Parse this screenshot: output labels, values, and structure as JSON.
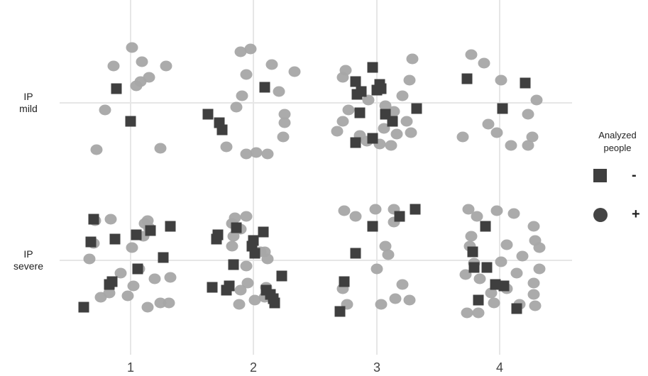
{
  "chart_data": {
    "type": "scatter",
    "title": "",
    "xlabel": "",
    "ylabel": "",
    "x_categories": [
      "1",
      "2",
      "3",
      "4"
    ],
    "y_categories": [
      "IP mild",
      "IP severe"
    ],
    "y_category_lines": [
      [
        "IP",
        "mild"
      ],
      [
        "IP",
        "severe"
      ]
    ],
    "grid": true,
    "legend": {
      "title": "Analyzed people",
      "title_lines": [
        "Analyzed",
        "people"
      ],
      "placement": "right",
      "items": [
        {
          "label": "-",
          "marker": "square"
        },
        {
          "label": "+",
          "marker": "circle"
        }
      ]
    },
    "colors": {
      "minus": "#3f3f3f",
      "plus": "#a6a6a6",
      "grid": "#e6e6e6"
    },
    "series": [
      {
        "name": "-",
        "marker": "square",
        "points": [
          {
            "x": -0.1,
            "y": 0.1
          },
          {
            "x": 0.0,
            "y": -0.13
          },
          {
            "x": -0.32,
            "y": -0.08
          },
          {
            "x": -0.24,
            "y": -0.14
          },
          {
            "x": -0.22,
            "y": -0.19
          },
          {
            "x": 0.08,
            "y": 0.11
          },
          {
            "x": -0.03,
            "y": 0.25
          },
          {
            "x": -0.15,
            "y": 0.15
          },
          {
            "x": -0.14,
            "y": 0.06
          },
          {
            "x": -0.11,
            "y": 0.08
          },
          {
            "x": 0.0,
            "y": 0.09
          },
          {
            "x": 0.02,
            "y": 0.13
          },
          {
            "x": 0.03,
            "y": 0.1
          },
          {
            "x": -0.12,
            "y": -0.07
          },
          {
            "x": 0.06,
            "y": -0.08
          },
          {
            "x": 0.11,
            "y": -0.13
          },
          {
            "x": 0.28,
            "y": -0.04
          },
          {
            "x": -0.03,
            "y": -0.25
          },
          {
            "x": -0.15,
            "y": -0.28
          },
          {
            "x": -0.23,
            "y": 0.17
          },
          {
            "x": 0.18,
            "y": 0.14
          },
          {
            "x": 0.02,
            "y": -0.04
          },
          {
            "x": -0.26,
            "y": 0.29
          },
          {
            "x": -0.11,
            "y": 0.15
          },
          {
            "x": 0.28,
            "y": 0.24
          },
          {
            "x": 0.04,
            "y": 0.18
          },
          {
            "x": 0.05,
            "y": -0.06
          },
          {
            "x": -0.13,
            "y": -0.15
          },
          {
            "x": -0.15,
            "y": -0.17
          },
          {
            "x": -0.33,
            "y": -0.33
          },
          {
            "x": 0.23,
            "y": 0.02
          },
          {
            "x": 0.14,
            "y": 0.21
          },
          {
            "x": -0.28,
            "y": 0.13
          },
          {
            "x": -0.25,
            "y": 0.18
          },
          {
            "x": -0.26,
            "y": 0.15
          },
          {
            "x": -0.12,
            "y": 0.23
          },
          {
            "x": 0.07,
            "y": 0.2
          },
          {
            "x": 0.0,
            "y": 0.14
          },
          {
            "x": -0.01,
            "y": 0.1
          },
          {
            "x": 0.01,
            "y": 0.05
          },
          {
            "x": -0.14,
            "y": -0.03
          },
          {
            "x": 0.2,
            "y": -0.11
          },
          {
            "x": -0.17,
            "y": -0.18
          },
          {
            "x": -0.19,
            "y": -0.21
          },
          {
            "x": -0.29,
            "y": -0.19
          },
          {
            "x": 0.12,
            "y": -0.24
          },
          {
            "x": 0.14,
            "y": -0.27
          },
          {
            "x": 0.15,
            "y": -0.3
          },
          {
            "x": 0.09,
            "y": -0.21
          },
          {
            "x": -0.03,
            "y": 0.24
          },
          {
            "x": -0.15,
            "y": 0.05
          },
          {
            "x": 0.16,
            "y": 0.31
          },
          {
            "x": 0.27,
            "y": 0.36
          },
          {
            "x": -0.23,
            "y": -0.15
          },
          {
            "x": -0.26,
            "y": -0.36
          },
          {
            "x": 0.12,
            "y": -0.34
          },
          {
            "x": -0.1,
            "y": 0.24
          },
          {
            "x": -0.19,
            "y": 0.06
          },
          {
            "x": -0.18,
            "y": -0.05
          },
          {
            "x": -0.09,
            "y": -0.05
          },
          {
            "x": -0.15,
            "y": -0.28
          },
          {
            "x": -0.03,
            "y": -0.17
          },
          {
            "x": 0.03,
            "y": -0.18
          },
          {
            "x": 0.19,
            "y": 0.15
          }
        ]
      },
      {
        "name": "+",
        "marker": "circle",
        "points": [
          {
            "x": -0.12,
            "y": 0.26
          },
          {
            "x": 0.01,
            "y": 0.39
          },
          {
            "x": 0.08,
            "y": 0.29
          },
          {
            "x": 0.13,
            "y": 0.18
          },
          {
            "x": 0.07,
            "y": 0.15
          },
          {
            "x": 0.04,
            "y": 0.12
          },
          {
            "x": 0.25,
            "y": 0.26
          },
          {
            "x": -0.18,
            "y": -0.05
          },
          {
            "x": -0.24,
            "y": -0.33
          },
          {
            "x": 0.21,
            "y": -0.32
          },
          {
            "x": -0.09,
            "y": 0.36
          },
          {
            "x": -0.02,
            "y": 0.38
          },
          {
            "x": 0.13,
            "y": 0.27
          },
          {
            "x": 0.29,
            "y": 0.22
          },
          {
            "x": -0.05,
            "y": 0.2
          },
          {
            "x": 0.18,
            "y": 0.08
          },
          {
            "x": -0.12,
            "y": -0.03
          },
          {
            "x": -0.08,
            "y": 0.05
          },
          {
            "x": 0.22,
            "y": -0.08
          },
          {
            "x": 0.22,
            "y": -0.14
          },
          {
            "x": 0.21,
            "y": -0.24
          },
          {
            "x": -0.19,
            "y": -0.31
          },
          {
            "x": -0.05,
            "y": -0.36
          },
          {
            "x": 0.1,
            "y": -0.36
          },
          {
            "x": 0.02,
            "y": -0.35
          },
          {
            "x": -0.22,
            "y": 0.23
          },
          {
            "x": -0.24,
            "y": 0.18
          },
          {
            "x": 0.25,
            "y": 0.31
          },
          {
            "x": 0.23,
            "y": 0.16
          },
          {
            "x": 0.18,
            "y": 0.05
          },
          {
            "x": -0.2,
            "y": -0.05
          },
          {
            "x": -0.24,
            "y": -0.13
          },
          {
            "x": -0.28,
            "y": -0.2
          },
          {
            "x": 0.05,
            "y": -0.18
          },
          {
            "x": 0.14,
            "y": -0.22
          },
          {
            "x": 0.24,
            "y": -0.21
          },
          {
            "x": 0.02,
            "y": -0.29
          },
          {
            "x": -0.12,
            "y": -0.23
          },
          {
            "x": 0.12,
            "y": -0.06
          },
          {
            "x": 0.06,
            "y": -0.02
          },
          {
            "x": -0.06,
            "y": 0.02
          },
          {
            "x": 0.21,
            "y": -0.13
          },
          {
            "x": 0.1,
            "y": -0.3
          },
          {
            "x": -0.07,
            "y": -0.27
          },
          {
            "x": -0.2,
            "y": 0.34
          },
          {
            "x": -0.11,
            "y": 0.28
          },
          {
            "x": 0.01,
            "y": 0.16
          },
          {
            "x": 0.26,
            "y": 0.02
          },
          {
            "x": 0.2,
            "y": -0.08
          },
          {
            "x": -0.02,
            "y": -0.21
          },
          {
            "x": 0.08,
            "y": -0.3
          },
          {
            "x": 0.2,
            "y": -0.3
          },
          {
            "x": 0.23,
            "y": -0.24
          },
          {
            "x": -0.26,
            "y": -0.24
          },
          {
            "x": -0.08,
            "y": -0.15
          },
          {
            "x": -0.25,
            "y": 0.28
          },
          {
            "x": -0.14,
            "y": 0.29
          },
          {
            "x": 0.09,
            "y": 0.17
          },
          {
            "x": 0.13,
            "y": 0.23
          },
          {
            "x": 0.1,
            "y": 0.26
          },
          {
            "x": 0.12,
            "y": 0.28
          },
          {
            "x": -0.26,
            "y": 0.12
          },
          {
            "x": 0.01,
            "y": 0.09
          },
          {
            "x": -0.29,
            "y": 0.01
          },
          {
            "x": 0.06,
            "y": -0.06
          },
          {
            "x": -0.07,
            "y": -0.09
          },
          {
            "x": 0.17,
            "y": -0.13
          },
          {
            "x": 0.28,
            "y": -0.12
          },
          {
            "x": 0.02,
            "y": -0.18
          },
          {
            "x": -0.21,
            "y": -0.26
          },
          {
            "x": -0.15,
            "y": -0.23
          },
          {
            "x": 0.12,
            "y": -0.33
          },
          {
            "x": 0.21,
            "y": -0.3
          },
          {
            "x": 0.27,
            "y": -0.3
          },
          {
            "x": -0.02,
            "y": -0.25
          },
          {
            "x": -0.15,
            "y": 0.26
          },
          {
            "x": -0.05,
            "y": 0.31
          },
          {
            "x": -0.09,
            "y": 0.22
          },
          {
            "x": 0.05,
            "y": 0.06
          },
          {
            "x": -0.04,
            "y": -0.16
          },
          {
            "x": 0.09,
            "y": -0.19
          },
          {
            "x": -0.09,
            "y": -0.21
          },
          {
            "x": 0.01,
            "y": -0.28
          },
          {
            "x": -0.1,
            "y": -0.31
          },
          {
            "x": 0.08,
            "y": -0.26
          },
          {
            "x": -0.05,
            "y": -0.04
          },
          {
            "x": 0.1,
            "y": 0.01
          },
          {
            "x": 0.08,
            "y": 0.06
          },
          {
            "x": -0.15,
            "y": 0.1
          },
          {
            "x": -0.14,
            "y": 0.17
          },
          {
            "x": -0.13,
            "y": 0.3
          },
          {
            "x": -0.23,
            "y": 0.35
          },
          {
            "x": -0.01,
            "y": 0.36
          },
          {
            "x": 0.12,
            "y": 0.36
          },
          {
            "x": -0.15,
            "y": 0.31
          },
          {
            "x": 0.12,
            "y": 0.27
          },
          {
            "x": 0.06,
            "y": 0.1
          },
          {
            "x": 0.08,
            "y": 0.04
          },
          {
            "x": 0.0,
            "y": -0.06
          },
          {
            "x": -0.24,
            "y": -0.2
          },
          {
            "x": 0.13,
            "y": -0.27
          },
          {
            "x": -0.21,
            "y": -0.31
          },
          {
            "x": 0.03,
            "y": -0.31
          },
          {
            "x": 0.18,
            "y": -0.17
          },
          {
            "x": 0.23,
            "y": -0.28
          },
          {
            "x": -0.22,
            "y": 0.36
          },
          {
            "x": -0.16,
            "y": 0.31
          },
          {
            "x": -0.02,
            "y": 0.35
          },
          {
            "x": 0.1,
            "y": 0.33
          },
          {
            "x": 0.24,
            "y": 0.24
          },
          {
            "x": 0.25,
            "y": 0.14
          },
          {
            "x": 0.28,
            "y": 0.09
          },
          {
            "x": 0.28,
            "y": -0.06
          },
          {
            "x": 0.05,
            "y": 0.11
          },
          {
            "x": 0.01,
            "y": -0.01
          },
          {
            "x": -0.2,
            "y": 0.17
          },
          {
            "x": -0.21,
            "y": 0.1
          },
          {
            "x": -0.24,
            "y": -0.1
          },
          {
            "x": -0.14,
            "y": -0.13
          },
          {
            "x": 0.12,
            "y": -0.09
          },
          {
            "x": 0.24,
            "y": -0.16
          },
          {
            "x": 0.24,
            "y": -0.24
          },
          {
            "x": 0.25,
            "y": -0.32
          },
          {
            "x": 0.14,
            "y": -0.31
          },
          {
            "x": -0.04,
            "y": -0.3
          },
          {
            "x": -0.23,
            "y": -0.37
          },
          {
            "x": -0.15,
            "y": -0.37
          },
          {
            "x": -0.06,
            "y": -0.23
          },
          {
            "x": 0.05,
            "y": -0.2
          },
          {
            "x": -0.18,
            "y": -0.02
          },
          {
            "x": 0.16,
            "y": 0.03
          }
        ]
      }
    ]
  }
}
